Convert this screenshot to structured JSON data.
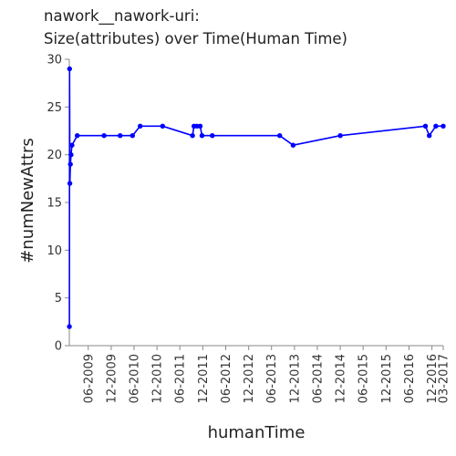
{
  "chart_data": {
    "type": "line",
    "title_lines": [
      "nawork__nawork-uri:",
      "Size(attributes) over Time(Human Time)"
    ],
    "xlabel": "humanTime",
    "ylabel": "#numNewAttrs",
    "ylim": [
      0,
      30
    ],
    "yticks": [
      0,
      5,
      10,
      15,
      20,
      25,
      30
    ],
    "xlim": [
      "2009-01-01",
      "2017-03-01"
    ],
    "xticks": [
      "2009-06-01",
      "2009-12-01",
      "2010-06-01",
      "2010-12-01",
      "2011-06-01",
      "2011-12-01",
      "2012-06-01",
      "2012-12-01",
      "2013-06-01",
      "2013-12-01",
      "2014-06-01",
      "2014-12-01",
      "2015-06-01",
      "2015-12-01",
      "2016-06-01",
      "2016-12-01",
      "2017-03-01"
    ],
    "xtick_labels": [
      "06-2009",
      "12-2009",
      "06-2010",
      "12-2010",
      "06-2011",
      "12-2011",
      "06-2012",
      "12-2012",
      "06-2013",
      "12-2013",
      "06-2014",
      "12-2014",
      "06-2015",
      "12-2015",
      "06-2016",
      "12-2016",
      "03-2017"
    ],
    "grid": false,
    "color": "#0000ff",
    "points": [
      {
        "x": "2009-01-02",
        "y": 2
      },
      {
        "x": "2009-01-03",
        "y": 29
      },
      {
        "x": "2009-01-05",
        "y": 17
      },
      {
        "x": "2009-01-10",
        "y": 19
      },
      {
        "x": "2009-01-15",
        "y": 20
      },
      {
        "x": "2009-01-22",
        "y": 21
      },
      {
        "x": "2009-03-05",
        "y": 22
      },
      {
        "x": "2009-10-05",
        "y": 22
      },
      {
        "x": "2010-02-10",
        "y": 22
      },
      {
        "x": "2010-05-20",
        "y": 22
      },
      {
        "x": "2010-07-20",
        "y": 23
      },
      {
        "x": "2011-01-15",
        "y": 23
      },
      {
        "x": "2011-09-10",
        "y": 22
      },
      {
        "x": "2011-09-22",
        "y": 23
      },
      {
        "x": "2011-10-15",
        "y": 23
      },
      {
        "x": "2011-11-10",
        "y": 23
      },
      {
        "x": "2011-11-25",
        "y": 22
      },
      {
        "x": "2012-02-15",
        "y": 22
      },
      {
        "x": "2013-08-05",
        "y": 22
      },
      {
        "x": "2013-11-20",
        "y": 21
      },
      {
        "x": "2014-12-01",
        "y": 22
      },
      {
        "x": "2016-10-10",
        "y": 23
      },
      {
        "x": "2016-11-10",
        "y": 22
      },
      {
        "x": "2017-01-01",
        "y": 23
      },
      {
        "x": "2017-03-01",
        "y": 23
      }
    ]
  }
}
